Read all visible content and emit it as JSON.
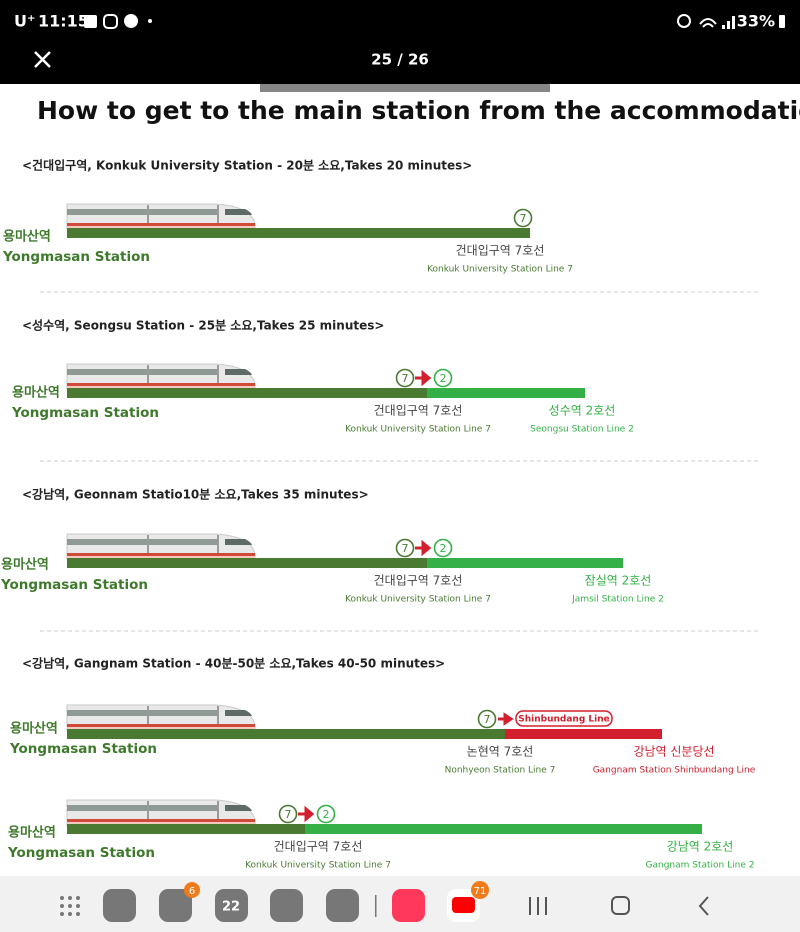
{
  "status_bar": {
    "carrier": "U⁺",
    "time": "11:15",
    "battery": "33%"
  },
  "viewer": {
    "page_counter": "25 / 26"
  },
  "title": "How to get to the main station from the accommodation -",
  "sections": [
    {
      "header": "<건대입구역, Konkuk University Station - 20분 소요,Takes 20 minutes>",
      "routes": [
        {
          "origin_ko": "용마산역",
          "origin_en": "Yongmasan Station",
          "badges": [
            "7"
          ],
          "stops": [
            {
              "ko": "건대입구역 7호선",
              "en": "Konkuk University Station Line 7",
              "color": "#4a7a32"
            }
          ]
        }
      ]
    },
    {
      "header": "<성수역, Seongsu Station - 25분 소요,Takes 25 minutes>",
      "routes": [
        {
          "origin_ko": "용마산역",
          "origin_en": "Yongmasan Station",
          "badges": [
            "7",
            "2"
          ],
          "stops": [
            {
              "ko": "건대입구역 7호선",
              "en": "Konkuk University Station Line 7",
              "color": "#4a7a32"
            },
            {
              "ko": "성수역 2호선",
              "en": "Seongsu Station Line 2",
              "color": "#35b046"
            }
          ]
        }
      ]
    },
    {
      "header": "<강남역, Geonnam Statio10분 소요,Takes 35 minutes>",
      "routes": [
        {
          "origin_ko": "용마산역",
          "origin_en": "Yongmasan Station",
          "badges": [
            "7",
            "2"
          ],
          "stops": [
            {
              "ko": "건대입구역 7호선",
              "en": "Konkuk University Station Line 7",
              "color": "#4a7a32"
            },
            {
              "ko": "잠실역 2호선",
              "en": "Jamsil Station Line 2",
              "color": "#35b046"
            }
          ]
        }
      ]
    },
    {
      "header": "<강남역, Gangnam Station - 40분-50분 소요,Takes 40-50 minutes>",
      "routes": [
        {
          "origin_ko": "용마산역",
          "origin_en": "Yongmasan Station",
          "badges": [
            "7"
          ],
          "transfer_label": "Shinbundang Line",
          "stops": [
            {
              "ko": "논현역 7호선",
              "en": "Nonhyeon Station Line 7",
              "color": "#4a7a32"
            },
            {
              "ko": "강남역 신분당선",
              "en": "Gangnam Station Shinbundang Line",
              "color": "#d3202f"
            }
          ]
        },
        {
          "origin_ko": "용마산역",
          "origin_en": "Yongmasan Station",
          "badges": [
            "7",
            "2"
          ],
          "stops": [
            {
              "ko": "건대입구역 7호선",
              "en": "Konkuk University Station Line 7",
              "color": "#4a7a32"
            },
            {
              "ko": "강남역 2호선",
              "en": "Gangnam Station Line 2",
              "color": "#35b046"
            }
          ]
        }
      ]
    }
  ],
  "taskbar": {
    "badges": [
      "6",
      "22",
      "71"
    ]
  }
}
